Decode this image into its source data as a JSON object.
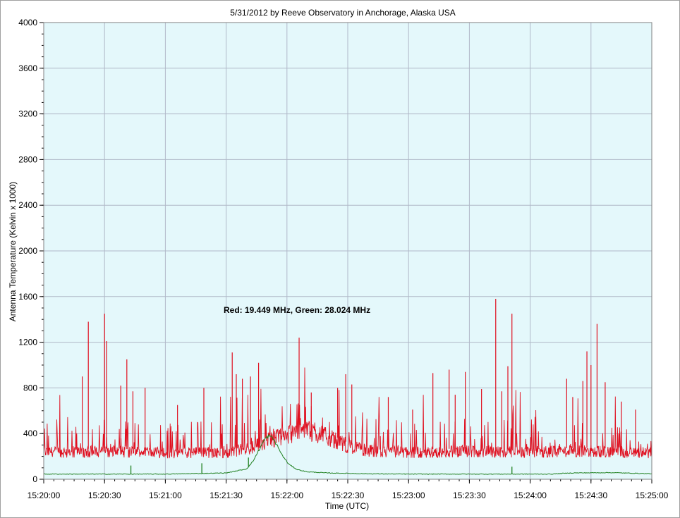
{
  "chart_data": {
    "type": "line",
    "title": "5/31/2012  by  Reeve Observatory  in  Anchorage, Alaska  USA",
    "xlabel": "Time (UTC)",
    "ylabel": "Antenna Temperature (Kelvin x 1000)",
    "annotation": "Red: 19.449 MHz, Green: 28.024 MHz",
    "ylim": [
      0,
      4000
    ],
    "yticks": [
      "0",
      "400",
      "800",
      "1200",
      "1600",
      "2000",
      "2400",
      "2800",
      "3200",
      "3600",
      "4000"
    ],
    "xlim": [
      "15:20:00",
      "15:25:00"
    ],
    "xticks": [
      "15:20:00",
      "15:20:30",
      "15:21:00",
      "15:21:30",
      "15:22:00",
      "15:22:30",
      "15:23:00",
      "15:23:30",
      "15:24:00",
      "15:24:30",
      "15:25:00"
    ],
    "grid": true,
    "background_color": "#e4f8fb",
    "series": [
      {
        "name": "Red: 19.449 MHz",
        "color": "#e01020",
        "baseline_points": [
          [
            "15:20:00",
            260
          ],
          [
            "15:20:30",
            270
          ],
          [
            "15:21:00",
            255
          ],
          [
            "15:21:30",
            260
          ],
          [
            "15:21:40",
            290
          ],
          [
            "15:21:50",
            370
          ],
          [
            "15:22:00",
            430
          ],
          [
            "15:22:10",
            470
          ],
          [
            "15:22:20",
            410
          ],
          [
            "15:22:30",
            320
          ],
          [
            "15:22:40",
            275
          ],
          [
            "15:23:00",
            260
          ],
          [
            "15:23:30",
            270
          ],
          [
            "15:24:00",
            265
          ],
          [
            "15:24:30",
            275
          ],
          [
            "15:25:00",
            255
          ]
        ],
        "spikes": [
          [
            "15:20:19",
            900
          ],
          [
            "15:20:22",
            1380
          ],
          [
            "15:20:30",
            1450
          ],
          [
            "15:20:31",
            1210
          ],
          [
            "15:20:38",
            820
          ],
          [
            "15:20:41",
            1050
          ],
          [
            "15:20:44",
            770
          ],
          [
            "15:20:50",
            800
          ],
          [
            "15:21:06",
            650
          ],
          [
            "15:21:19",
            800
          ],
          [
            "15:21:33",
            1110
          ],
          [
            "15:21:35",
            920
          ],
          [
            "15:21:38",
            880
          ],
          [
            "15:21:42",
            900
          ],
          [
            "15:21:46",
            1020
          ],
          [
            "15:22:06",
            1240
          ],
          [
            "15:22:12",
            760
          ],
          [
            "15:22:25",
            800
          ],
          [
            "15:22:29",
            920
          ],
          [
            "15:22:32",
            830
          ],
          [
            "15:22:50",
            720
          ],
          [
            "15:23:02",
            610
          ],
          [
            "15:23:12",
            930
          ],
          [
            "15:23:20",
            960
          ],
          [
            "15:23:23",
            740
          ],
          [
            "15:23:28",
            940
          ],
          [
            "15:23:36",
            790
          ],
          [
            "15:23:43",
            1580
          ],
          [
            "15:23:46",
            770
          ],
          [
            "15:23:49",
            990
          ],
          [
            "15:23:51",
            1450
          ],
          [
            "15:24:18",
            880
          ],
          [
            "15:24:21",
            720
          ],
          [
            "15:24:26",
            860
          ],
          [
            "15:24:28",
            1120
          ],
          [
            "15:24:30",
            1000
          ],
          [
            "15:24:33",
            1360
          ],
          [
            "15:24:37",
            850
          ],
          [
            "15:24:45",
            680
          ],
          [
            "15:24:52",
            610
          ]
        ]
      },
      {
        "name": "Green: 28.024 MHz",
        "color": "#208020",
        "baseline": 45,
        "points": [
          [
            "15:20:00",
            45
          ],
          [
            "15:21:00",
            45
          ],
          [
            "15:21:30",
            55
          ],
          [
            "15:21:40",
            90
          ],
          [
            "15:21:43",
            150
          ],
          [
            "15:21:46",
            250
          ],
          [
            "15:21:49",
            350
          ],
          [
            "15:21:51",
            380
          ],
          [
            "15:21:53",
            360
          ],
          [
            "15:21:55",
            300
          ],
          [
            "15:21:58",
            200
          ],
          [
            "15:22:01",
            130
          ],
          [
            "15:22:05",
            85
          ],
          [
            "15:22:10",
            65
          ],
          [
            "15:22:20",
            55
          ],
          [
            "15:22:40",
            48
          ],
          [
            "15:23:00",
            45
          ],
          [
            "15:24:10",
            45
          ],
          [
            "15:24:20",
            55
          ],
          [
            "15:24:40",
            58
          ],
          [
            "15:25:00",
            48
          ]
        ],
        "spikes": [
          [
            "15:20:43",
            120
          ],
          [
            "15:21:18",
            140
          ],
          [
            "15:21:41",
            190
          ],
          [
            "15:23:51",
            110
          ]
        ]
      }
    ]
  }
}
